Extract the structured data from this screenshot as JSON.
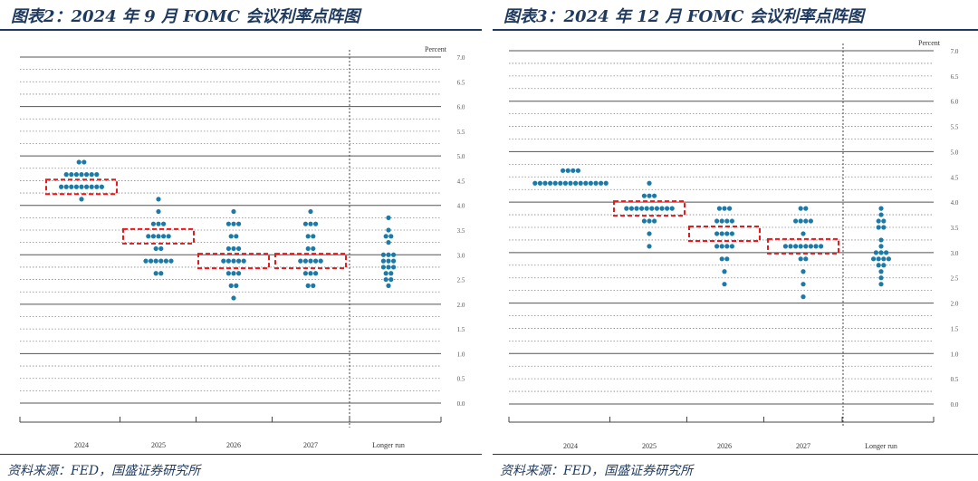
{
  "left": {
    "title": "图表2：2024 年 9 月 FOMC 会议利率点阵图",
    "source": "资料来源：FED，国盛证券研究所"
  },
  "right": {
    "title": "图表3：2024 年 12 月 FOMC 会议利率点阵图",
    "source": "资料来源：FED，国盛证券研究所"
  },
  "chart_data": [
    {
      "type": "scatter",
      "title": "图表2：2024 年 9 月 FOMC 会议利率点阵图",
      "ylabel": "Percent",
      "ylim": [
        0,
        7
      ],
      "yticks": [
        "0.0",
        "0.5",
        "1.0",
        "1.5",
        "2.0",
        "2.5",
        "3.0",
        "3.5",
        "4.0",
        "4.5",
        "5.0",
        "5.5",
        "6.0",
        "6.5",
        "7.0"
      ],
      "categories": [
        "2024",
        "2025",
        "2026",
        "2027",
        "Longer run"
      ],
      "highlight_color": "#e8191c",
      "dot_color": "#1a7aa8",
      "dots": [
        {
          "x": "2024",
          "values": [
            {
              "y": 4.875,
              "n": 2
            },
            {
              "y": 4.625,
              "n": 7
            },
            {
              "y": 4.375,
              "n": 9
            },
            {
              "y": 4.125,
              "n": 1
            }
          ]
        },
        {
          "x": "2025",
          "values": [
            {
              "y": 4.125,
              "n": 1
            },
            {
              "y": 3.875,
              "n": 1
            },
            {
              "y": 3.625,
              "n": 3
            },
            {
              "y": 3.375,
              "n": 5
            },
            {
              "y": 3.125,
              "n": 2
            },
            {
              "y": 2.875,
              "n": 6
            },
            {
              "y": 2.625,
              "n": 2
            }
          ]
        },
        {
          "x": "2026",
          "values": [
            {
              "y": 3.875,
              "n": 1
            },
            {
              "y": 3.625,
              "n": 3
            },
            {
              "y": 3.375,
              "n": 2
            },
            {
              "y": 3.125,
              "n": 3
            },
            {
              "y": 2.875,
              "n": 5
            },
            {
              "y": 2.625,
              "n": 3
            },
            {
              "y": 2.375,
              "n": 2
            },
            {
              "y": 2.125,
              "n": 1
            }
          ]
        },
        {
          "x": "2027",
          "values": [
            {
              "y": 3.875,
              "n": 1
            },
            {
              "y": 3.625,
              "n": 3
            },
            {
              "y": 3.375,
              "n": 2
            },
            {
              "y": 3.125,
              "n": 2
            },
            {
              "y": 2.875,
              "n": 5
            },
            {
              "y": 2.625,
              "n": 3
            },
            {
              "y": 2.375,
              "n": 2
            }
          ]
        },
        {
          "x": "Longer run",
          "values": [
            {
              "y": 3.75,
              "n": 1
            },
            {
              "y": 3.5,
              "n": 1
            },
            {
              "y": 3.375,
              "n": 2
            },
            {
              "y": 3.25,
              "n": 1
            },
            {
              "y": 3.0,
              "n": 3
            },
            {
              "y": 2.875,
              "n": 3
            },
            {
              "y": 2.75,
              "n": 3
            },
            {
              "y": 2.625,
              "n": 2
            },
            {
              "y": 2.5,
              "n": 2
            },
            {
              "y": 2.375,
              "n": 1
            }
          ]
        }
      ],
      "highlight_boxes": [
        {
          "x": "2024",
          "y": 4.375
        },
        {
          "x": "2025",
          "y": 3.375
        },
        {
          "x": "2026",
          "y": 2.875
        },
        {
          "x": "2027",
          "y": 2.875
        }
      ]
    },
    {
      "type": "scatter",
      "title": "图表3：2024 年 12 月 FOMC 会议利率点阵图",
      "ylabel": "Percent",
      "ylim": [
        0,
        7
      ],
      "yticks": [
        "0.0",
        "0.5",
        "1.0",
        "1.5",
        "2.0",
        "2.5",
        "3.0",
        "3.5",
        "4.0",
        "4.5",
        "5.0",
        "5.5",
        "6.0",
        "6.5",
        "7.0"
      ],
      "categories": [
        "2024",
        "2025",
        "2026",
        "2027",
        "Longer run"
      ],
      "highlight_color": "#e8191c",
      "dot_color": "#1a7aa8",
      "dots": [
        {
          "x": "2024",
          "values": [
            {
              "y": 4.625,
              "n": 4
            },
            {
              "y": 4.375,
              "n": 15
            }
          ]
        },
        {
          "x": "2025",
          "values": [
            {
              "y": 4.375,
              "n": 1
            },
            {
              "y": 4.125,
              "n": 3
            },
            {
              "y": 3.875,
              "n": 10
            },
            {
              "y": 3.625,
              "n": 3
            },
            {
              "y": 3.375,
              "n": 1
            },
            {
              "y": 3.125,
              "n": 1
            }
          ]
        },
        {
          "x": "2026",
          "values": [
            {
              "y": 3.875,
              "n": 3
            },
            {
              "y": 3.625,
              "n": 4
            },
            {
              "y": 3.375,
              "n": 4
            },
            {
              "y": 3.125,
              "n": 4
            },
            {
              "y": 2.875,
              "n": 2
            },
            {
              "y": 2.625,
              "n": 1
            },
            {
              "y": 2.375,
              "n": 1
            }
          ]
        },
        {
          "x": "2027",
          "values": [
            {
              "y": 3.875,
              "n": 2
            },
            {
              "y": 3.625,
              "n": 4
            },
            {
              "y": 3.375,
              "n": 1
            },
            {
              "y": 3.125,
              "n": 8
            },
            {
              "y": 2.875,
              "n": 2
            },
            {
              "y": 2.625,
              "n": 1
            },
            {
              "y": 2.375,
              "n": 1
            },
            {
              "y": 2.125,
              "n": 1
            }
          ]
        },
        {
          "x": "Longer run",
          "values": [
            {
              "y": 3.875,
              "n": 1
            },
            {
              "y": 3.75,
              "n": 1
            },
            {
              "y": 3.625,
              "n": 2
            },
            {
              "y": 3.5,
              "n": 2
            },
            {
              "y": 3.25,
              "n": 1
            },
            {
              "y": 3.125,
              "n": 1
            },
            {
              "y": 3.0,
              "n": 3
            },
            {
              "y": 2.875,
              "n": 4
            },
            {
              "y": 2.75,
              "n": 2
            },
            {
              "y": 2.625,
              "n": 1
            },
            {
              "y": 2.5,
              "n": 1
            },
            {
              "y": 2.375,
              "n": 1
            }
          ]
        }
      ],
      "highlight_boxes": [
        {
          "x": "2025",
          "y": 3.875
        },
        {
          "x": "2026",
          "y": 3.375
        },
        {
          "x": "2027",
          "y": 3.125
        }
      ]
    }
  ]
}
